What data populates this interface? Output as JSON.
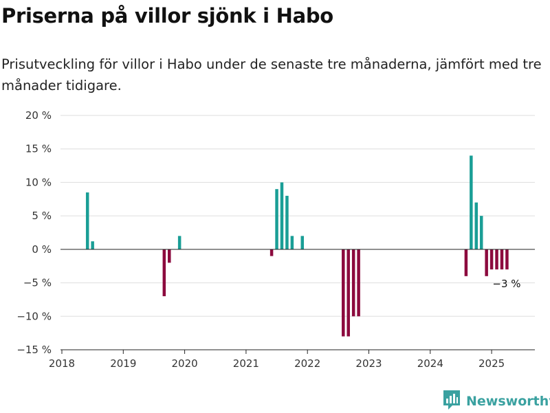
{
  "header": {
    "title": "Priserna på villor sjönk i Habo",
    "subtitle": "Prisutveckling för villor i Habo under de senaste tre månaderna, jämfört med tre månader tidigare."
  },
  "brand": {
    "name": "Newsworthy",
    "icon": "bar-chart-logo-icon",
    "color": "#3aa1a0"
  },
  "colors": {
    "positive": "#1a9e96",
    "negative": "#8c0a3e",
    "grid": "#dddddd",
    "axis": "#222222"
  },
  "chart_data": {
    "type": "bar",
    "title": "Priserna på villor sjönk i Habo",
    "subtitle": "Prisutveckling för villor i Habo under de senaste tre månaderna, jämfört med tre månader tidigare.",
    "xlabel": "",
    "ylabel": "",
    "x_range": [
      "2018-01",
      "2025-08"
    ],
    "ylim": [
      -15,
      20
    ],
    "y_ticks": [
      -15,
      -10,
      -5,
      0,
      5,
      10,
      15,
      20
    ],
    "y_tick_labels": [
      "−15 %",
      "−10 %",
      "−5 %",
      "0 %",
      "5 %",
      "10 %",
      "15 %",
      "20 %"
    ],
    "x_ticks": [
      "2018",
      "2019",
      "2020",
      "2021",
      "2022",
      "2023",
      "2024",
      "2025"
    ],
    "grid": true,
    "series": [
      {
        "values": [
          {
            "x": "2018-06",
            "y": 8.5
          },
          {
            "x": "2018-07",
            "y": 1.2
          },
          {
            "x": "2019-09",
            "y": -7
          },
          {
            "x": "2019-10",
            "y": -2
          },
          {
            "x": "2019-12",
            "y": 2
          },
          {
            "x": "2021-06",
            "y": -1
          },
          {
            "x": "2021-07",
            "y": 9
          },
          {
            "x": "2021-08",
            "y": 10
          },
          {
            "x": "2021-09",
            "y": 8
          },
          {
            "x": "2021-10",
            "y": 2
          },
          {
            "x": "2021-12",
            "y": 2
          },
          {
            "x": "2022-08",
            "y": -13
          },
          {
            "x": "2022-09",
            "y": -13
          },
          {
            "x": "2022-10",
            "y": -10
          },
          {
            "x": "2022-11",
            "y": -10
          },
          {
            "x": "2024-08",
            "y": -4
          },
          {
            "x": "2024-09",
            "y": 14
          },
          {
            "x": "2024-10",
            "y": 7
          },
          {
            "x": "2024-11",
            "y": 5
          },
          {
            "x": "2024-12",
            "y": -4
          },
          {
            "x": "2025-01",
            "y": -3
          },
          {
            "x": "2025-02",
            "y": -3
          },
          {
            "x": "2025-03",
            "y": -3
          },
          {
            "x": "2025-04",
            "y": -3
          }
        ]
      }
    ],
    "annotations": [
      {
        "x": "2025-04",
        "text": "−3 %"
      }
    ]
  }
}
